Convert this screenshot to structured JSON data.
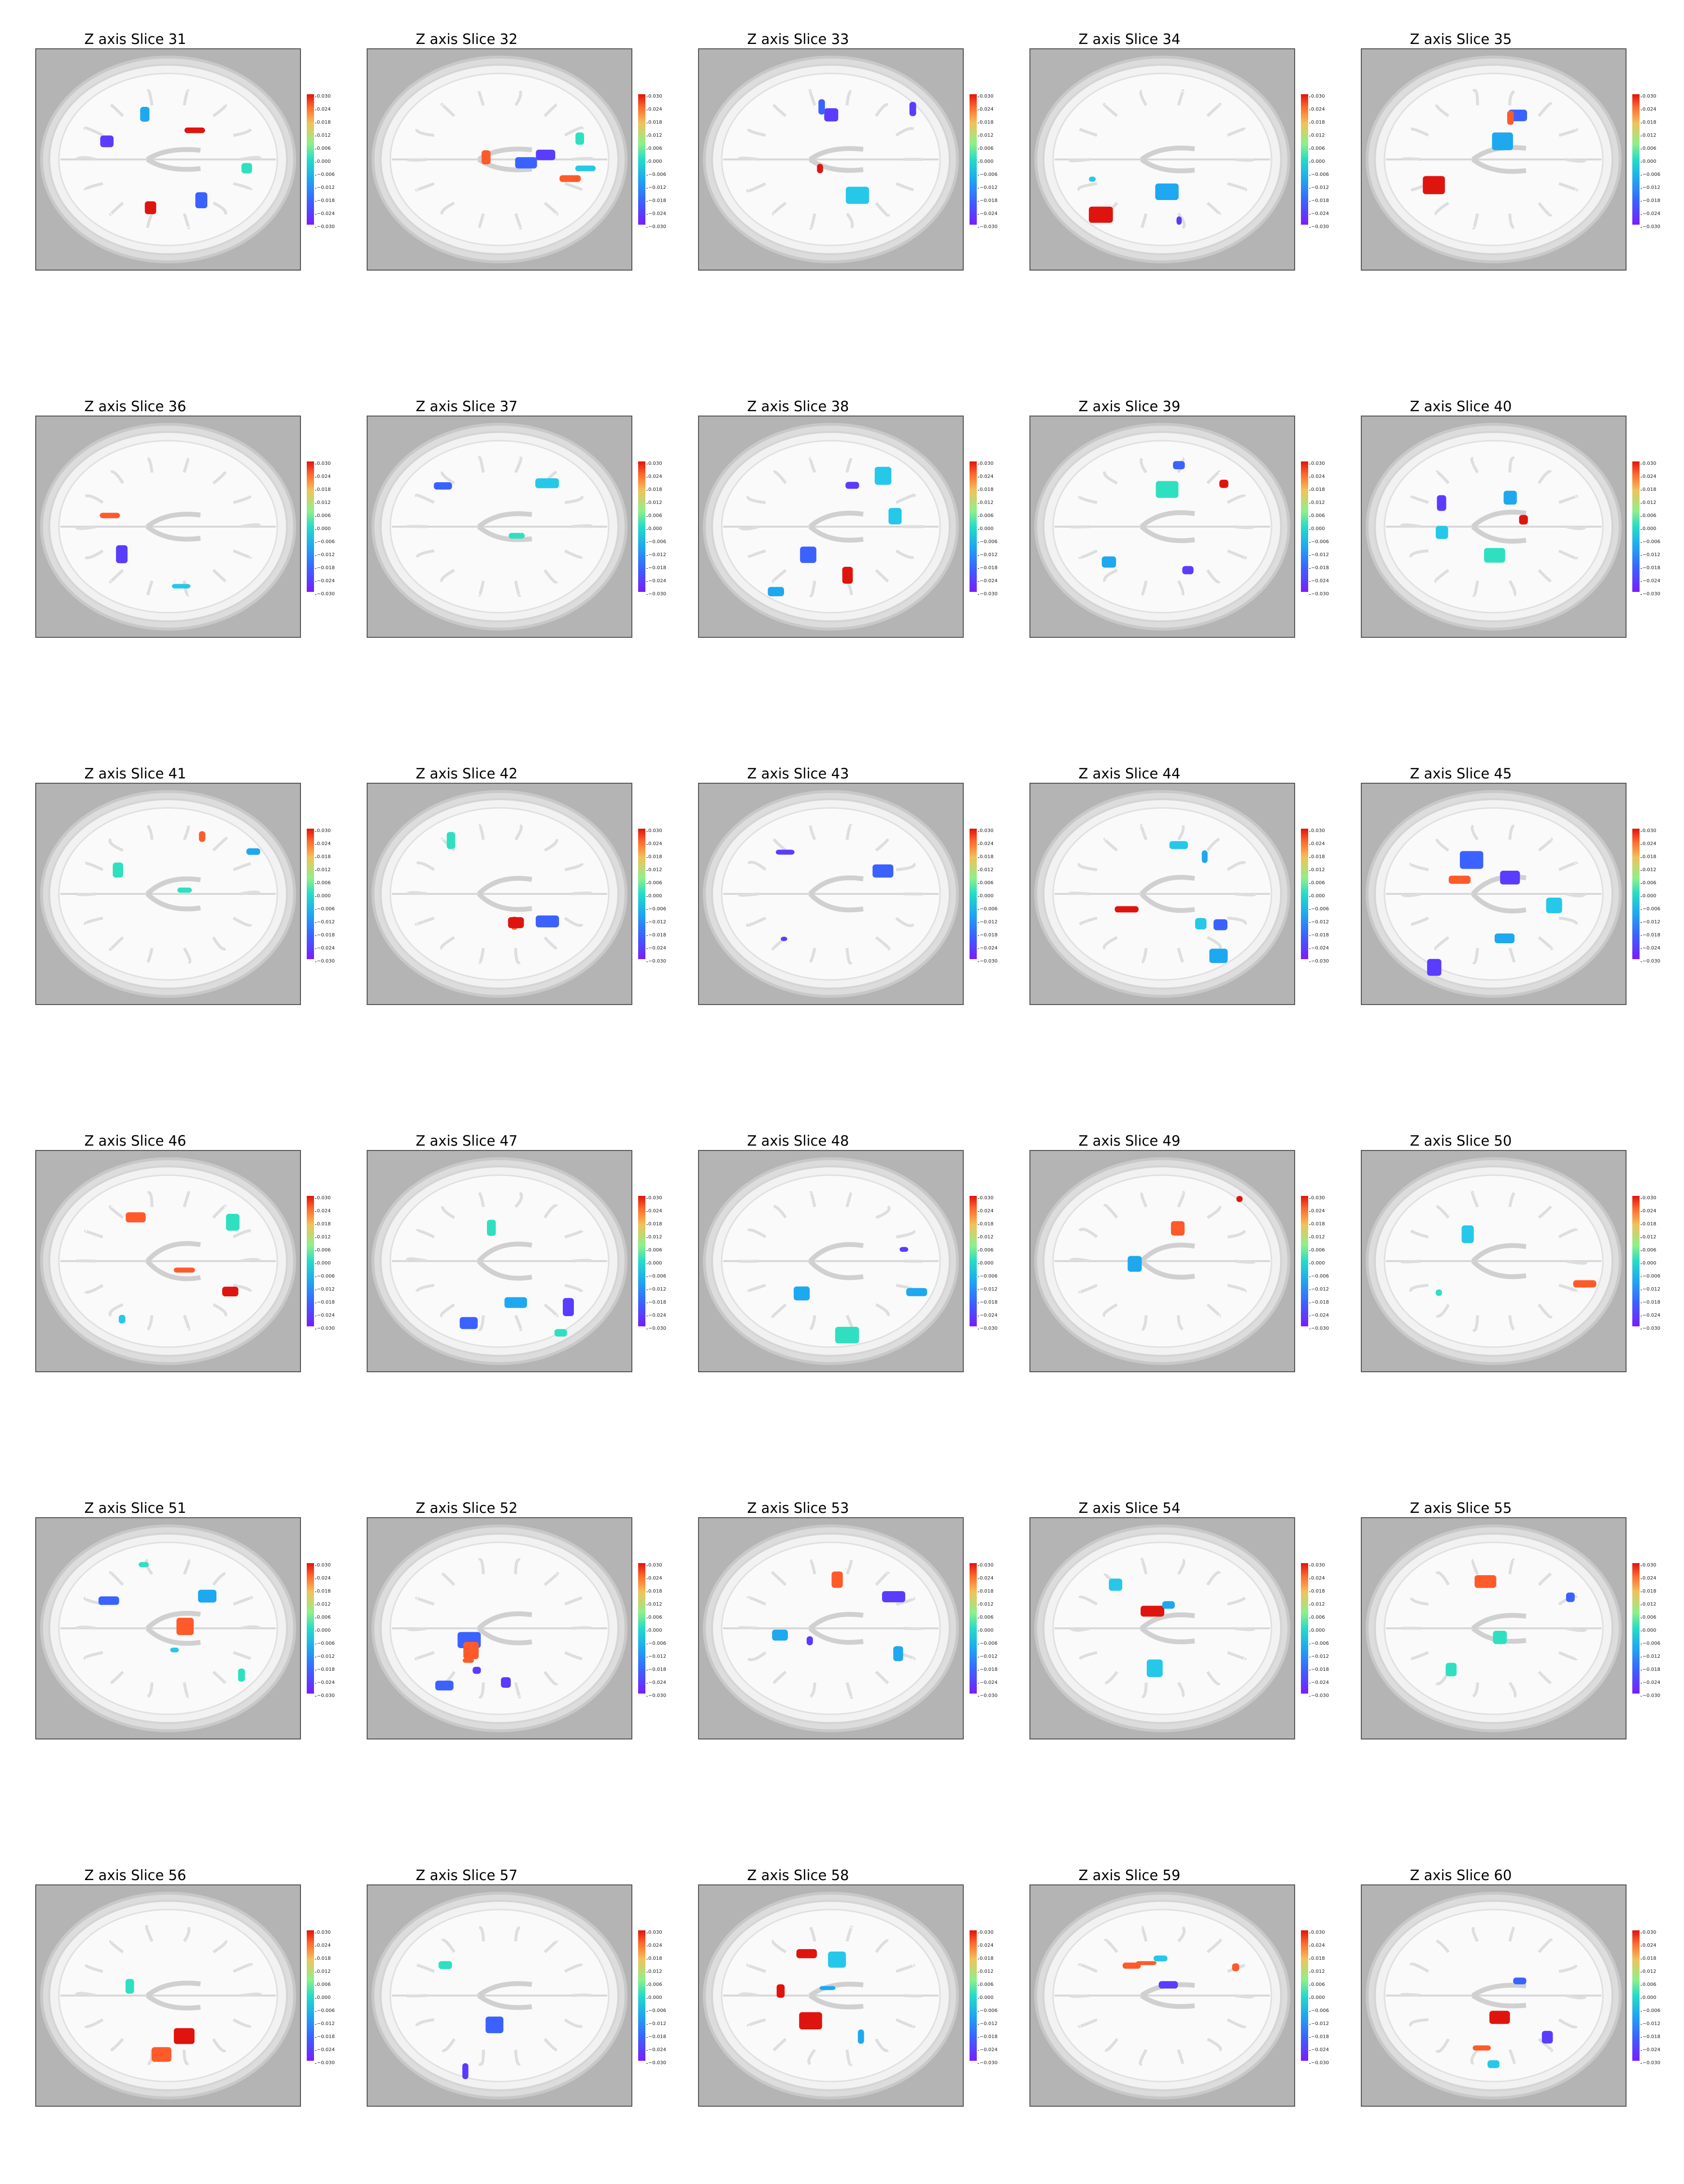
{
  "figure": {
    "panels": [
      {
        "title": "Z axis Slice 31",
        "slice": 31
      },
      {
        "title": "Z axis Slice 32",
        "slice": 32
      },
      {
        "title": "Z axis Slice 33",
        "slice": 33
      },
      {
        "title": "Z axis Slice 34",
        "slice": 34
      },
      {
        "title": "Z axis Slice 35",
        "slice": 35
      },
      {
        "title": "Z axis Slice 36",
        "slice": 36
      },
      {
        "title": "Z axis Slice 37",
        "slice": 37
      },
      {
        "title": "Z axis Slice 38",
        "slice": 38
      },
      {
        "title": "Z axis Slice 39",
        "slice": 39
      },
      {
        "title": "Z axis Slice 40",
        "slice": 40
      },
      {
        "title": "Z axis Slice 41",
        "slice": 41
      },
      {
        "title": "Z axis Slice 42",
        "slice": 42
      },
      {
        "title": "Z axis Slice 43",
        "slice": 43
      },
      {
        "title": "Z axis Slice 44",
        "slice": 44
      },
      {
        "title": "Z axis Slice 45",
        "slice": 45
      },
      {
        "title": "Z axis Slice 46",
        "slice": 46
      },
      {
        "title": "Z axis Slice 47",
        "slice": 47
      },
      {
        "title": "Z axis Slice 48",
        "slice": 48
      },
      {
        "title": "Z axis Slice 49",
        "slice": 49
      },
      {
        "title": "Z axis Slice 50",
        "slice": 50
      },
      {
        "title": "Z axis Slice 51",
        "slice": 51
      },
      {
        "title": "Z axis Slice 52",
        "slice": 52
      },
      {
        "title": "Z axis Slice 53",
        "slice": 53
      },
      {
        "title": "Z axis Slice 54",
        "slice": 54
      },
      {
        "title": "Z axis Slice 55",
        "slice": 55
      },
      {
        "title": "Z axis Slice 56",
        "slice": 56
      },
      {
        "title": "Z axis Slice 57",
        "slice": 57
      },
      {
        "title": "Z axis Slice 58",
        "slice": 58
      },
      {
        "title": "Z axis Slice 59",
        "slice": 59
      },
      {
        "title": "Z axis Slice 60",
        "slice": 60
      }
    ],
    "colorbar": {
      "ticks": [
        "0.030",
        "0.024",
        "0.018",
        "0.012",
        "0.006",
        "0.000",
        "−0.006",
        "−0.012",
        "−0.018",
        "−0.024",
        "−0.030"
      ],
      "min": -0.03,
      "max": 0.03,
      "colormap": "rainbow"
    },
    "colors": {
      "background": "#b4b4b4",
      "brain": "#ededed",
      "positive": "#e0140e",
      "negative": "#3b62ff",
      "neutral": "#25dcc7"
    }
  }
}
